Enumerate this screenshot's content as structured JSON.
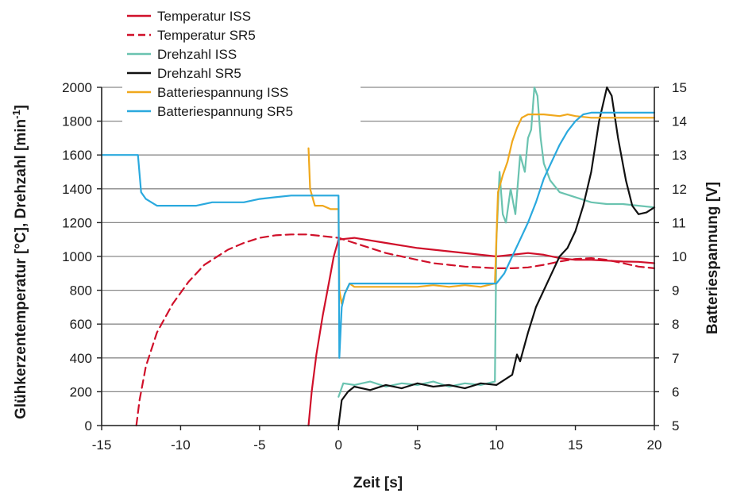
{
  "chart_data": {
    "type": "line",
    "xlabel": "Zeit [s]",
    "ylabel_left": "Glühkerzentemperatur [°C], Drehzahl [min-1]",
    "ylabel_left_main": "Glühkerzentemperatur [°C], Drehzahl [min",
    "ylabel_left_sup": "-1",
    "ylabel_left_end": "]",
    "ylabel_right": "Batteriespannung [V]",
    "xlim": [
      -15,
      20
    ],
    "ylim_left": [
      0,
      2000
    ],
    "ylim_right": [
      5,
      15
    ],
    "grid": true,
    "legend_position": "top-left",
    "x_ticks": [
      "-15",
      "-10",
      "-5",
      "0",
      "5",
      "10",
      "15",
      "20"
    ],
    "y_left_ticks": [
      "0",
      "200",
      "400",
      "600",
      "800",
      "1000",
      "1200",
      "1400",
      "1600",
      "1800",
      "2000"
    ],
    "y_right_ticks": [
      "5",
      "6",
      "7",
      "8",
      "9",
      "10",
      "11",
      "12",
      "13",
      "14",
      "15"
    ],
    "series": [
      {
        "name": "Temperatur ISS",
        "color": "#d0102a",
        "dash": "solid",
        "axis": "left",
        "points": [
          [
            -1.9,
            0
          ],
          [
            -1.7,
            200
          ],
          [
            -1.4,
            420
          ],
          [
            -1.0,
            650
          ],
          [
            -0.6,
            850
          ],
          [
            -0.3,
            1000
          ],
          [
            0,
            1100
          ],
          [
            1,
            1110
          ],
          [
            3,
            1080
          ],
          [
            5,
            1050
          ],
          [
            7,
            1030
          ],
          [
            9,
            1010
          ],
          [
            10,
            1000
          ],
          [
            11,
            1010
          ],
          [
            12,
            1020
          ],
          [
            13,
            1010
          ],
          [
            14,
            990
          ],
          [
            15,
            980
          ],
          [
            16,
            980
          ],
          [
            17,
            975
          ],
          [
            18,
            970
          ],
          [
            19,
            968
          ],
          [
            20,
            960
          ]
        ]
      },
      {
        "name": "Temperatur SR5",
        "color": "#d0102a",
        "dash": "dashed",
        "axis": "left",
        "points": [
          [
            -12.8,
            0
          ],
          [
            -12.6,
            150
          ],
          [
            -12.2,
            350
          ],
          [
            -11.5,
            550
          ],
          [
            -10.5,
            720
          ],
          [
            -9.5,
            850
          ],
          [
            -8.5,
            950
          ],
          [
            -7,
            1040
          ],
          [
            -6,
            1080
          ],
          [
            -5,
            1110
          ],
          [
            -4,
            1125
          ],
          [
            -3,
            1130
          ],
          [
            -2,
            1130
          ],
          [
            -1,
            1120
          ],
          [
            0,
            1110
          ],
          [
            1,
            1080
          ],
          [
            2,
            1050
          ],
          [
            3,
            1020
          ],
          [
            4,
            1000
          ],
          [
            5,
            980
          ],
          [
            6,
            960
          ],
          [
            7,
            950
          ],
          [
            8,
            940
          ],
          [
            9,
            935
          ],
          [
            10,
            930
          ],
          [
            11,
            930
          ],
          [
            12,
            935
          ],
          [
            13,
            950
          ],
          [
            14,
            970
          ],
          [
            15,
            985
          ],
          [
            16,
            990
          ],
          [
            17,
            980
          ],
          [
            18,
            960
          ],
          [
            19,
            940
          ],
          [
            20,
            930
          ]
        ]
      },
      {
        "name": "Drehzahl ISS",
        "color": "#6ac3b0",
        "dash": "solid",
        "axis": "left",
        "points": [
          [
            0,
            170
          ],
          [
            0.3,
            250
          ],
          [
            1,
            240
          ],
          [
            2,
            260
          ],
          [
            3,
            230
          ],
          [
            4,
            250
          ],
          [
            5,
            240
          ],
          [
            6,
            260
          ],
          [
            7,
            230
          ],
          [
            8,
            250
          ],
          [
            9,
            240
          ],
          [
            9.9,
            260
          ],
          [
            10.0,
            1100
          ],
          [
            10.2,
            1500
          ],
          [
            10.4,
            1250
          ],
          [
            10.6,
            1200
          ],
          [
            10.9,
            1400
          ],
          [
            11.2,
            1250
          ],
          [
            11.5,
            1600
          ],
          [
            11.8,
            1500
          ],
          [
            12.0,
            1700
          ],
          [
            12.2,
            1750
          ],
          [
            12.4,
            2000
          ],
          [
            12.6,
            1950
          ],
          [
            12.8,
            1700
          ],
          [
            13.0,
            1550
          ],
          [
            13.4,
            1450
          ],
          [
            14,
            1380
          ],
          [
            15,
            1350
          ],
          [
            16,
            1320
          ],
          [
            17,
            1310
          ],
          [
            18,
            1310
          ],
          [
            19,
            1300
          ],
          [
            20,
            1290
          ]
        ]
      },
      {
        "name": "Drehzahl SR5",
        "color": "#111111",
        "dash": "solid",
        "axis": "left",
        "points": [
          [
            0,
            0
          ],
          [
            0.2,
            150
          ],
          [
            0.6,
            200
          ],
          [
            1,
            230
          ],
          [
            2,
            210
          ],
          [
            3,
            240
          ],
          [
            4,
            220
          ],
          [
            5,
            250
          ],
          [
            6,
            230
          ],
          [
            7,
            240
          ],
          [
            8,
            220
          ],
          [
            9,
            250
          ],
          [
            10,
            240
          ],
          [
            11,
            300
          ],
          [
            11.3,
            420
          ],
          [
            11.5,
            380
          ],
          [
            12,
            550
          ],
          [
            12.5,
            700
          ],
          [
            13,
            800
          ],
          [
            13.5,
            900
          ],
          [
            14,
            1000
          ],
          [
            14.5,
            1050
          ],
          [
            15,
            1150
          ],
          [
            15.5,
            1300
          ],
          [
            16,
            1500
          ],
          [
            16.5,
            1800
          ],
          [
            17,
            2000
          ],
          [
            17.3,
            1950
          ],
          [
            17.7,
            1700
          ],
          [
            18.2,
            1450
          ],
          [
            18.6,
            1300
          ],
          [
            19,
            1250
          ],
          [
            19.5,
            1260
          ],
          [
            20,
            1290
          ]
        ]
      },
      {
        "name": "Batteriespannung ISS",
        "color": "#f0a81c",
        "dash": "solid",
        "axis": "right",
        "points": [
          [
            -1.9,
            13.2
          ],
          [
            -1.8,
            12.0
          ],
          [
            -1.5,
            11.5
          ],
          [
            -1,
            11.5
          ],
          [
            -0.5,
            11.4
          ],
          [
            0,
            11.4
          ],
          [
            0.05,
            9.0
          ],
          [
            0.2,
            8.6
          ],
          [
            0.4,
            8.9
          ],
          [
            0.7,
            9.2
          ],
          [
            1,
            9.1
          ],
          [
            2,
            9.1
          ],
          [
            3,
            9.1
          ],
          [
            4,
            9.1
          ],
          [
            5,
            9.1
          ],
          [
            6,
            9.15
          ],
          [
            7,
            9.1
          ],
          [
            8,
            9.15
          ],
          [
            9,
            9.1
          ],
          [
            9.9,
            9.2
          ],
          [
            10.1,
            11.9
          ],
          [
            10.4,
            12.4
          ],
          [
            10.7,
            12.8
          ],
          [
            11.0,
            13.4
          ],
          [
            11.3,
            13.8
          ],
          [
            11.6,
            14.1
          ],
          [
            12,
            14.2
          ],
          [
            13,
            14.2
          ],
          [
            14,
            14.15
          ],
          [
            14.5,
            14.2
          ],
          [
            15,
            14.15
          ],
          [
            16,
            14.1
          ],
          [
            17,
            14.1
          ],
          [
            18,
            14.1
          ],
          [
            19,
            14.1
          ],
          [
            20,
            14.1
          ]
        ]
      },
      {
        "name": "Batteriespannung SR5",
        "color": "#2aa9de",
        "dash": "solid",
        "axis": "right",
        "points": [
          [
            -15,
            13.0
          ],
          [
            -12.7,
            13.0
          ],
          [
            -12.5,
            11.9
          ],
          [
            -12.2,
            11.7
          ],
          [
            -11.5,
            11.5
          ],
          [
            -10,
            11.5
          ],
          [
            -9,
            11.5
          ],
          [
            -8,
            11.6
          ],
          [
            -6,
            11.6
          ],
          [
            -5,
            11.7
          ],
          [
            -4,
            11.75
          ],
          [
            -3,
            11.8
          ],
          [
            -2,
            11.8
          ],
          [
            -1,
            11.8
          ],
          [
            0,
            11.8
          ],
          [
            0.05,
            7.0
          ],
          [
            0.2,
            8.5
          ],
          [
            0.4,
            8.9
          ],
          [
            0.7,
            9.2
          ],
          [
            1,
            9.2
          ],
          [
            2,
            9.2
          ],
          [
            3,
            9.2
          ],
          [
            4,
            9.2
          ],
          [
            5,
            9.2
          ],
          [
            6,
            9.2
          ],
          [
            7,
            9.2
          ],
          [
            8,
            9.2
          ],
          [
            9,
            9.2
          ],
          [
            10,
            9.2
          ],
          [
            10.5,
            9.5
          ],
          [
            11,
            10.0
          ],
          [
            11.5,
            10.5
          ],
          [
            12,
            11.0
          ],
          [
            12.5,
            11.6
          ],
          [
            13,
            12.3
          ],
          [
            13.5,
            12.8
          ],
          [
            14,
            13.3
          ],
          [
            14.5,
            13.7
          ],
          [
            15,
            14.0
          ],
          [
            15.5,
            14.2
          ],
          [
            16,
            14.25
          ],
          [
            17,
            14.25
          ],
          [
            18,
            14.25
          ],
          [
            19,
            14.25
          ],
          [
            20,
            14.25
          ]
        ]
      }
    ]
  }
}
